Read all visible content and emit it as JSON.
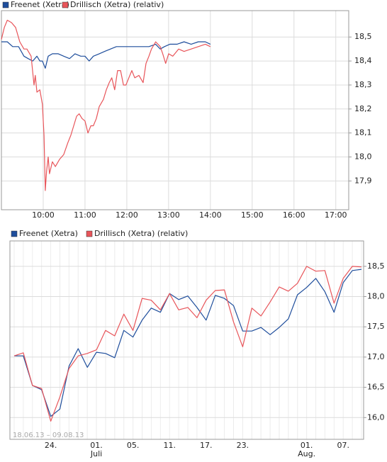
{
  "chart_data": [
    {
      "type": "line",
      "xlim": [
        9.0,
        17.31
      ],
      "xticks": [
        {
          "value": 10,
          "label": "10:00"
        },
        {
          "value": 11,
          "label": "11:00"
        },
        {
          "value": 12,
          "label": "12:00"
        },
        {
          "value": 13,
          "label": "13:00"
        },
        {
          "value": 14,
          "label": "14:00"
        },
        {
          "value": 15,
          "label": "15:00"
        },
        {
          "value": 16,
          "label": "16:00"
        },
        {
          "value": 17,
          "label": "17:00"
        }
      ],
      "ylim": [
        17.78,
        18.61
      ],
      "yticks": [
        {
          "value": 17.9,
          "label": "17,9"
        },
        {
          "value": 18.0,
          "label": "18,0"
        },
        {
          "value": 18.1,
          "label": "18,1"
        },
        {
          "value": 18.2,
          "label": "18,2"
        },
        {
          "value": 18.3,
          "label": "18,3"
        },
        {
          "value": 18.4,
          "label": "18,4"
        },
        {
          "value": 18.5,
          "label": "18,5"
        }
      ],
      "grid": true,
      "legend": "top-left",
      "series": [
        {
          "name": "Freenet (Xetra)",
          "color": "#1f4e9c",
          "x": [
            9.0,
            9.14,
            9.27,
            9.41,
            9.54,
            9.64,
            9.75,
            9.85,
            9.92,
            9.98,
            10.05,
            10.12,
            10.22,
            10.36,
            10.49,
            10.63,
            10.76,
            10.9,
            11.0,
            11.1,
            11.2,
            11.34,
            11.47,
            11.61,
            11.75,
            11.88,
            12.02,
            12.19,
            12.36,
            12.53,
            12.69,
            12.8,
            12.9,
            13.03,
            13.2,
            13.37,
            13.54,
            13.71,
            13.88,
            14.0
          ],
          "values": [
            18.48,
            18.48,
            18.46,
            18.46,
            18.42,
            18.41,
            18.4,
            18.42,
            18.4,
            18.4,
            18.37,
            18.42,
            18.43,
            18.43,
            18.42,
            18.41,
            18.43,
            18.42,
            18.42,
            18.4,
            18.42,
            18.43,
            18.44,
            18.45,
            18.46,
            18.46,
            18.46,
            18.46,
            18.46,
            18.46,
            18.47,
            18.45,
            18.46,
            18.47,
            18.47,
            18.48,
            18.47,
            18.48,
            18.48,
            18.47
          ]
        },
        {
          "name": "Drillisch (Xetra) (relativ)",
          "color": "#e8555a",
          "x": [
            9.0,
            9.07,
            9.14,
            9.24,
            9.34,
            9.44,
            9.54,
            9.61,
            9.71,
            9.78,
            9.81,
            9.85,
            9.92,
            9.98,
            10.02,
            10.05,
            10.08,
            10.12,
            10.15,
            10.22,
            10.29,
            10.39,
            10.49,
            10.59,
            10.66,
            10.73,
            10.8,
            10.86,
            10.93,
            11.0,
            11.07,
            11.14,
            11.2,
            11.27,
            11.34,
            11.44,
            11.51,
            11.58,
            11.64,
            11.71,
            11.78,
            11.85,
            11.92,
            11.98,
            12.05,
            12.12,
            12.19,
            12.29,
            12.39,
            12.46,
            12.53,
            12.59,
            12.69,
            12.8,
            12.86,
            12.93,
            13.0,
            13.1,
            13.24,
            13.37,
            13.54,
            13.71,
            13.88,
            14.0
          ],
          "values": [
            18.49,
            18.54,
            18.57,
            18.56,
            18.54,
            18.48,
            18.45,
            18.45,
            18.42,
            18.3,
            18.34,
            18.27,
            18.28,
            18.22,
            18.09,
            17.86,
            17.94,
            18.0,
            17.93,
            17.98,
            17.96,
            17.99,
            18.01,
            18.06,
            18.09,
            18.13,
            18.17,
            18.18,
            18.16,
            18.15,
            18.1,
            18.13,
            18.13,
            18.16,
            18.21,
            18.24,
            18.28,
            18.31,
            18.33,
            18.28,
            18.36,
            18.36,
            18.3,
            18.3,
            18.33,
            18.36,
            18.33,
            18.34,
            18.31,
            18.39,
            18.42,
            18.45,
            18.48,
            18.46,
            18.43,
            18.39,
            18.43,
            18.42,
            18.45,
            18.44,
            18.45,
            18.46,
            18.47,
            18.46
          ]
        }
      ]
    },
    {
      "type": "line",
      "categories": [
        null,
        null,
        null,
        null,
        "24.",
        null,
        null,
        null,
        null,
        "01.",
        null,
        null,
        null,
        "05.",
        null,
        null,
        null,
        "11.",
        null,
        null,
        null,
        "17.",
        null,
        null,
        null,
        "23.",
        null,
        null,
        null,
        null,
        null,
        null,
        "01.",
        null,
        null,
        null,
        "07.",
        null,
        null
      ],
      "months": [
        null,
        null,
        null,
        null,
        null,
        null,
        null,
        null,
        null,
        "Juli",
        null,
        null,
        null,
        null,
        null,
        null,
        null,
        null,
        null,
        null,
        null,
        null,
        null,
        null,
        null,
        null,
        null,
        null,
        null,
        null,
        null,
        null,
        "Aug.",
        null,
        null,
        null,
        null,
        null,
        null
      ],
      "ylim": [
        15.64,
        18.92
      ],
      "yticks": [
        {
          "value": 16.0,
          "label": "16,0"
        },
        {
          "value": 16.5,
          "label": "16,5"
        },
        {
          "value": 17.0,
          "label": "17,0"
        },
        {
          "value": 17.5,
          "label": "17,5"
        },
        {
          "value": 18.0,
          "label": "18,0"
        },
        {
          "value": 18.5,
          "label": "18,5"
        }
      ],
      "grid": true,
      "legend": "top-left",
      "date_range": "18.06.13 – 09.08.13",
      "series": [
        {
          "name": "Freenet (Xetra)",
          "color": "#1f4e9c",
          "values": [
            17.02,
            17.02,
            16.53,
            16.46,
            16.02,
            16.14,
            16.85,
            17.14,
            16.83,
            17.08,
            17.06,
            16.99,
            17.44,
            17.33,
            17.61,
            17.81,
            17.74,
            18.05,
            17.95,
            18.01,
            17.82,
            17.61,
            18.02,
            17.97,
            17.85,
            17.43,
            17.43,
            17.49,
            17.37,
            17.49,
            17.63,
            18.03,
            18.15,
            18.3,
            18.08,
            17.74,
            18.23,
            18.43,
            18.45
          ]
        },
        {
          "name": "Drillisch (Xetra) (relativ)",
          "color": "#e8555a",
          "values": [
            17.02,
            17.07,
            16.53,
            16.48,
            15.94,
            16.34,
            16.81,
            17.02,
            17.06,
            17.12,
            17.44,
            17.35,
            17.71,
            17.44,
            17.97,
            17.94,
            17.78,
            18.05,
            17.78,
            17.82,
            17.65,
            17.94,
            18.1,
            18.11,
            17.58,
            17.17,
            17.81,
            17.68,
            17.91,
            18.16,
            18.09,
            18.22,
            18.5,
            18.42,
            18.43,
            17.89,
            18.3,
            18.5,
            18.49
          ]
        }
      ]
    }
  ]
}
